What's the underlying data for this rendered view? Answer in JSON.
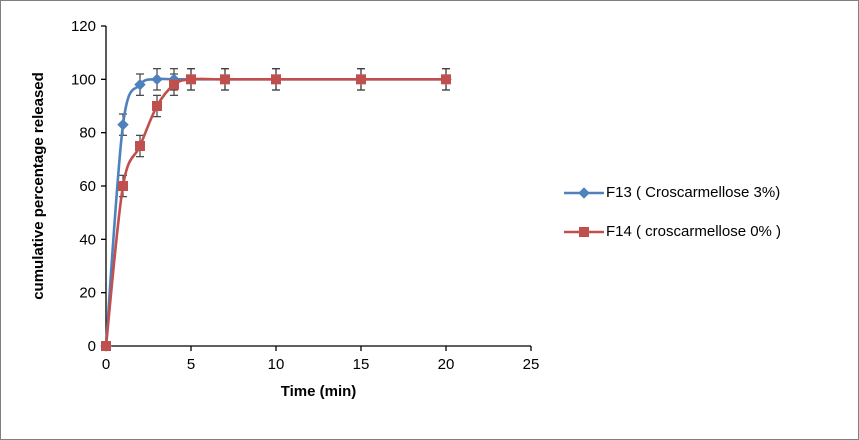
{
  "chart_data": {
    "type": "line",
    "title": "",
    "xlabel": "Time (min)",
    "ylabel": "cumulative percentage released",
    "xlim": [
      0,
      25
    ],
    "ylim": [
      0,
      120
    ],
    "xticks": [
      0,
      5,
      10,
      15,
      20,
      25
    ],
    "yticks": [
      0,
      20,
      40,
      60,
      80,
      100,
      120
    ],
    "grid": false,
    "legend_position": "right",
    "axis_color": "#000000",
    "error_bar_color": "#404040",
    "series": [
      {
        "name": "F13 (  Croscarmellose  3%)",
        "color": "#4F81BD",
        "marker": "diamond",
        "x": [
          0,
          1,
          2,
          3,
          4,
          5,
          7,
          10,
          15,
          20
        ],
        "y": [
          0,
          83,
          98,
          100,
          100,
          100,
          100,
          100,
          100,
          100
        ],
        "yerr": 4
      },
      {
        "name": "F14 ( croscarmellose  0% )",
        "color": "#C0504D",
        "marker": "square",
        "x": [
          0,
          1,
          2,
          3,
          4,
          5,
          7,
          10,
          15,
          20
        ],
        "y": [
          0,
          60,
          75,
          90,
          98,
          100,
          100,
          100,
          100,
          100
        ],
        "yerr": 4
      }
    ]
  }
}
